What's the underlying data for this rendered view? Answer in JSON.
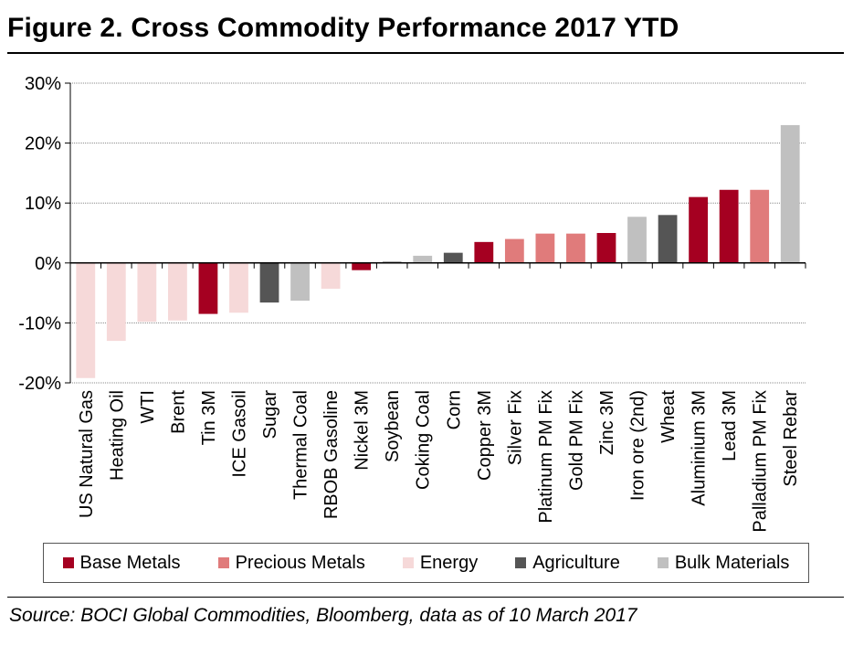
{
  "title": "Figure 2. Cross Commodity Performance 2017 YTD",
  "source": "Source: BOCI Global Commodities, Bloomberg, data as of 10 March 2017",
  "legend": [
    {
      "name": "Base Metals",
      "color": "#A50021"
    },
    {
      "name": "Precious Metals",
      "color": "#E07B7B"
    },
    {
      "name": "Energy",
      "color": "#F6D9D9"
    },
    {
      "name": "Agriculture",
      "color": "#555555"
    },
    {
      "name": "Bulk Materials",
      "color": "#C0C0C0"
    }
  ],
  "chart_data": {
    "type": "bar",
    "title": "Figure 2. Cross Commodity Performance 2017 YTD",
    "ylim": [
      -20,
      30
    ],
    "yticks": [
      30,
      20,
      10,
      0,
      -10,
      -20
    ],
    "ytick_labels": [
      "30%",
      "20%",
      "10%",
      "0%",
      "-10%",
      "-20%"
    ],
    "grid": true,
    "legend_position": "bottom",
    "categories": [
      "US Natural Gas",
      "Heating Oil",
      "WTI",
      "Brent",
      "Tin 3M",
      "ICE Gasoil",
      "Sugar",
      "Thermal Coal",
      "RBOB Gasoline",
      "Nickel 3M",
      "Soybean",
      "Coking Coal",
      "Corn",
      "Copper 3M",
      "Silver Fix",
      "Platinum PM Fix",
      "Gold PM Fix",
      "Zinc 3M",
      "Iron ore (2nd)",
      "Wheat",
      "Aluminium 3M",
      "Lead 3M",
      "Palladium PM Fix",
      "Steel Rebar"
    ],
    "values": [
      -19.2,
      -13.0,
      -9.8,
      -9.6,
      -8.5,
      -8.3,
      -6.6,
      -6.3,
      -4.3,
      -1.2,
      0.2,
      1.2,
      1.7,
      3.5,
      4.0,
      4.9,
      4.9,
      5.0,
      7.7,
      8.0,
      11.0,
      12.2,
      12.2,
      23.0
    ],
    "groups": [
      "Energy",
      "Energy",
      "Energy",
      "Energy",
      "Base Metals",
      "Energy",
      "Agriculture",
      "Bulk Materials",
      "Energy",
      "Base Metals",
      "Agriculture",
      "Bulk Materials",
      "Agriculture",
      "Base Metals",
      "Precious Metals",
      "Precious Metals",
      "Precious Metals",
      "Base Metals",
      "Bulk Materials",
      "Agriculture",
      "Base Metals",
      "Base Metals",
      "Precious Metals",
      "Bulk Materials"
    ]
  }
}
